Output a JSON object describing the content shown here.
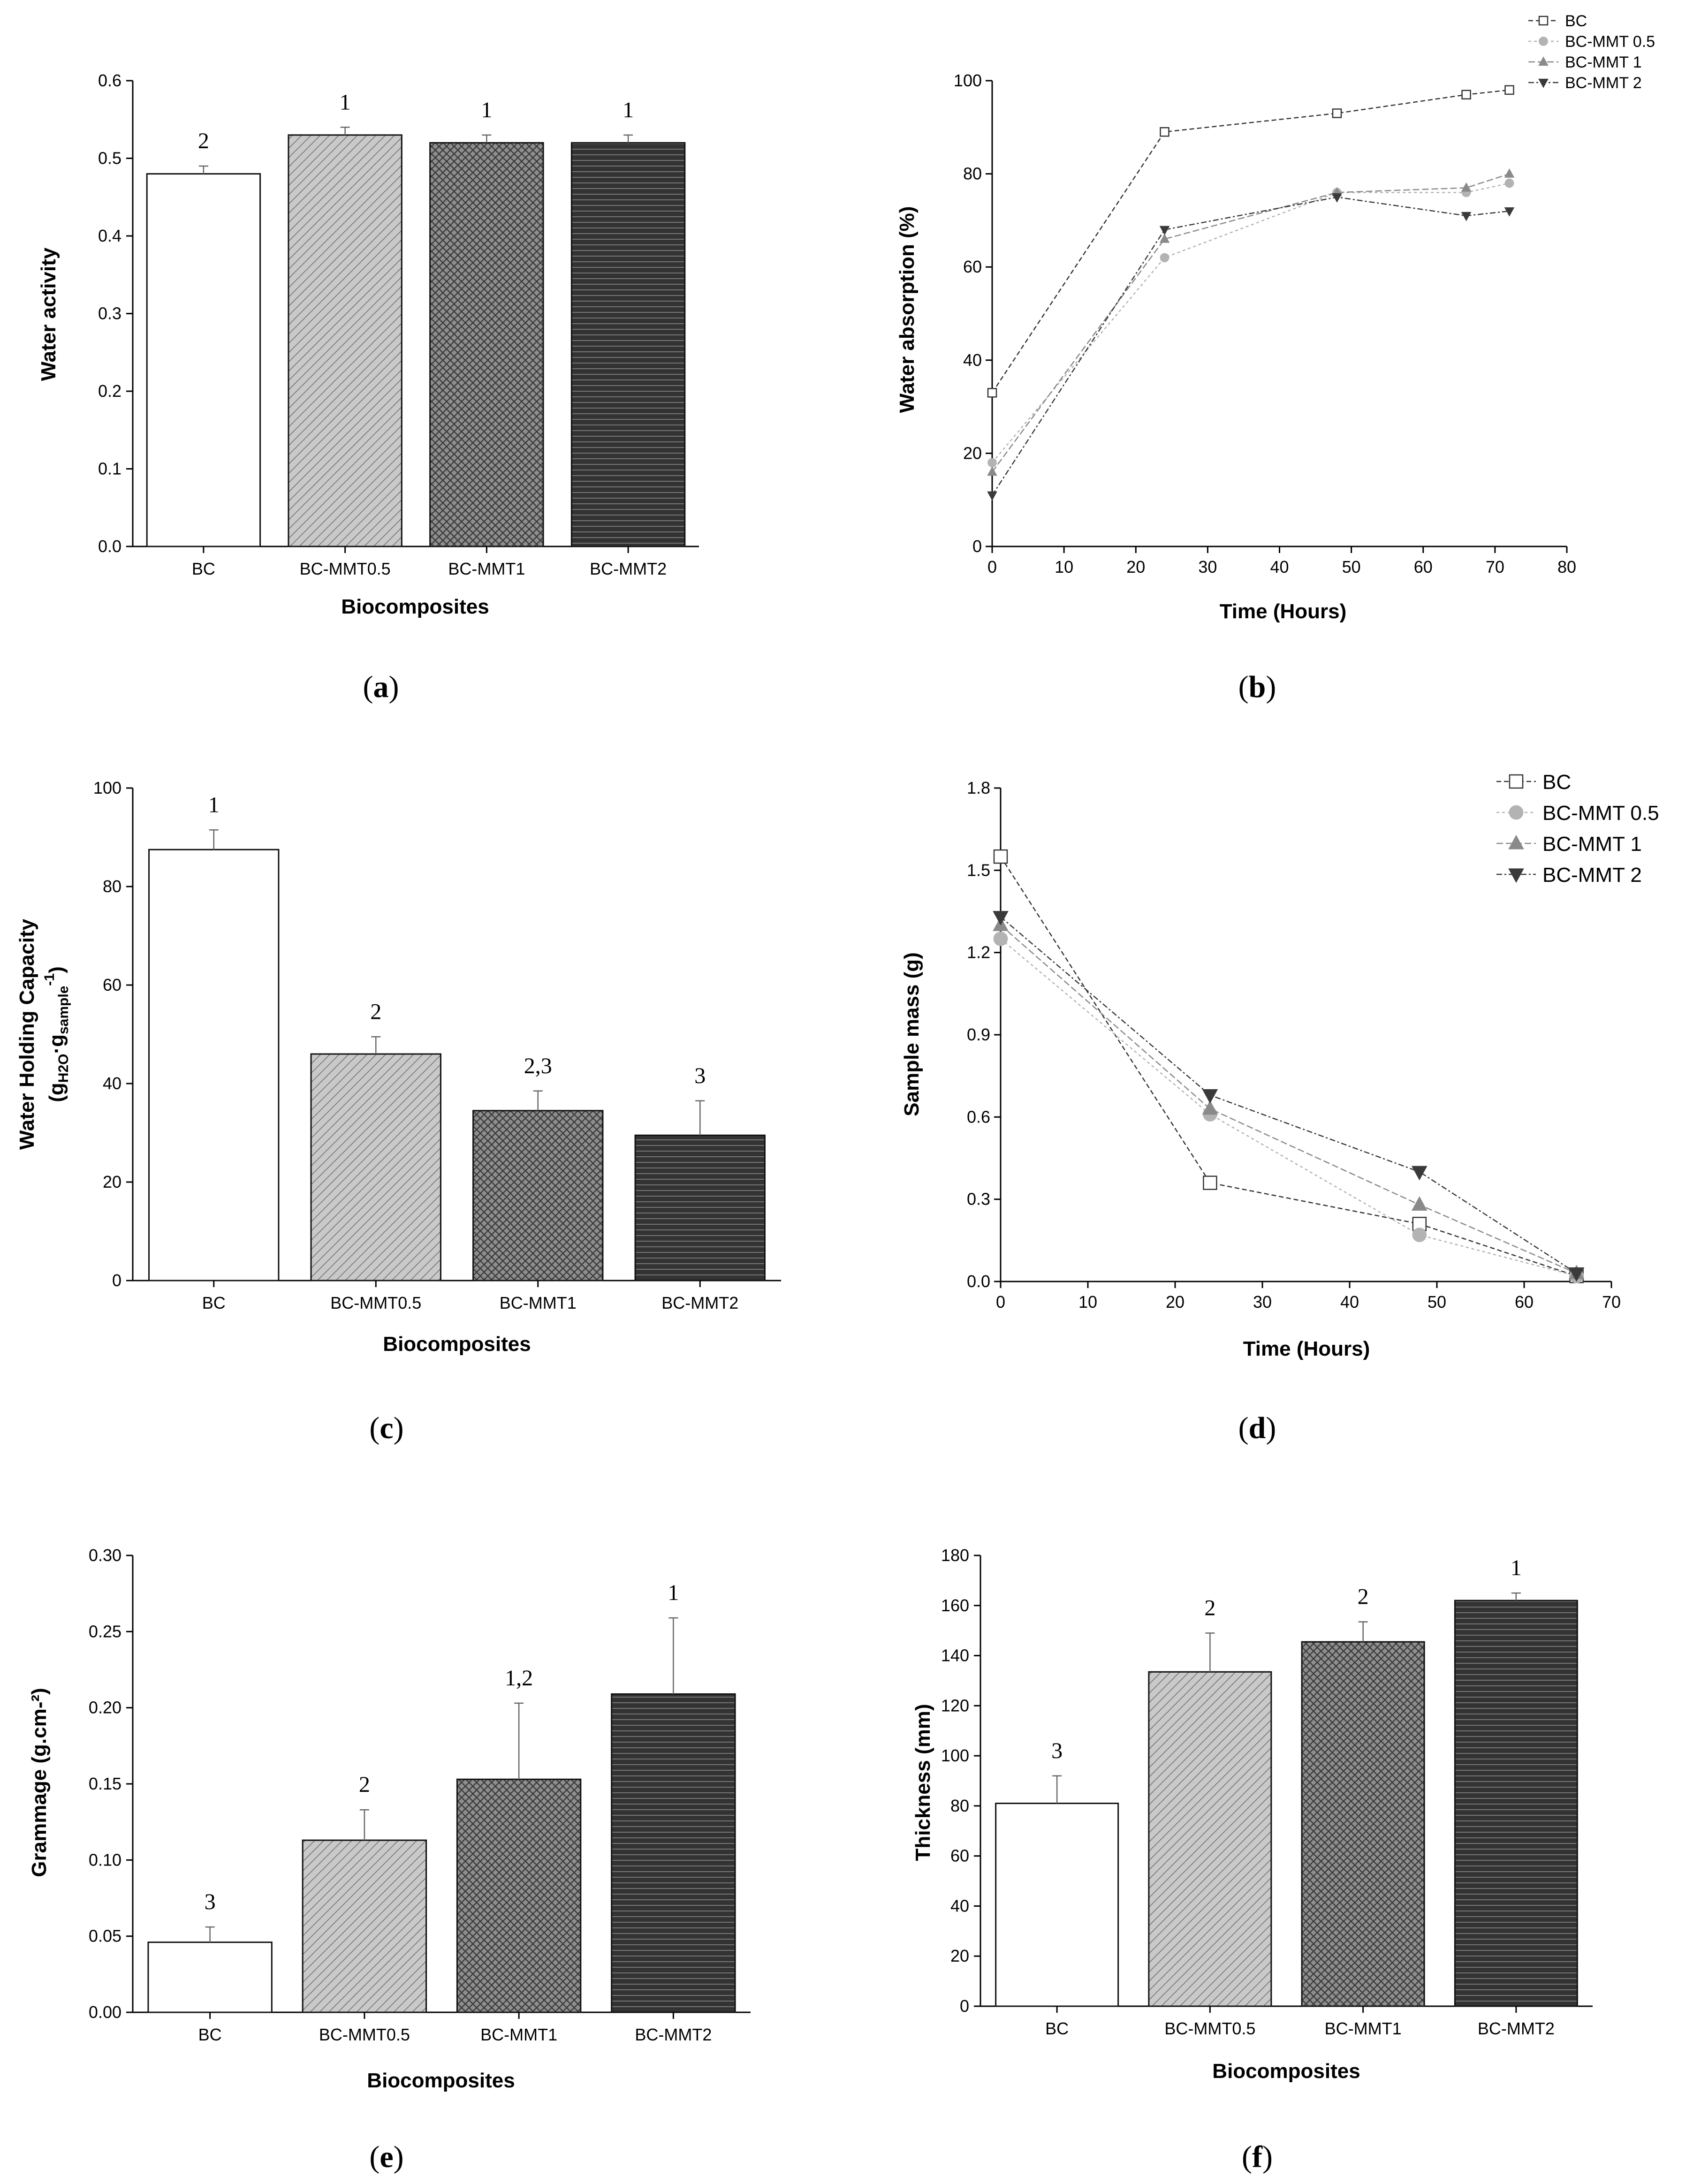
{
  "colors": {
    "bar_BC": "#ffffff",
    "bar_MMT05": "#c9c9c9",
    "bar_MMT1": "#8e8e8e",
    "bar_MMT2": "#333333",
    "axis": "#000000",
    "line_BC": "#333333",
    "line_MMT05": "#b3b3b3",
    "line_MMT1": "#8a8a8a",
    "line_MMT2": "#3a3a3a"
  },
  "chart_data": [
    {
      "type": "bar",
      "panel": "a",
      "panel_label": "a",
      "title": "",
      "xlabel": "Biocomposites",
      "ylabel": "Water activity",
      "ylim": [
        0.0,
        0.6
      ],
      "yticks": [
        "0.0",
        "0.1",
        "0.2",
        "0.3",
        "0.4",
        "0.5",
        "0.6"
      ],
      "categories": [
        "BC",
        "BC-MMT0.5",
        "BC-MMT1",
        "BC-MMT2"
      ],
      "values": [
        0.48,
        0.53,
        0.52,
        0.52
      ],
      "errors": [
        0.01,
        0.01,
        0.01,
        0.01
      ],
      "significance": [
        "2",
        "1",
        "1",
        "1"
      ]
    },
    {
      "type": "line",
      "panel": "b",
      "panel_label": "b",
      "title": "",
      "xlabel": "Time (Hours)",
      "ylabel": "Water absorption (%)",
      "xlim": [
        0,
        80
      ],
      "ylim": [
        0,
        100
      ],
      "xticks": [
        "0",
        "10",
        "20",
        "30",
        "40",
        "50",
        "60",
        "70",
        "80"
      ],
      "yticks": [
        "0",
        "20",
        "40",
        "60",
        "80",
        "100"
      ],
      "legend_position": "top-right",
      "series": [
        {
          "name": "BC",
          "marker": "square-open",
          "x": [
            0,
            24,
            48,
            66,
            72
          ],
          "y": [
            33,
            89,
            93,
            97,
            98
          ]
        },
        {
          "name": "BC-MMT 0.5",
          "marker": "circle",
          "x": [
            0,
            24,
            48,
            66,
            72
          ],
          "y": [
            18,
            62,
            76,
            76,
            78
          ]
        },
        {
          "name": "BC-MMT 1",
          "marker": "triangle-up",
          "x": [
            0,
            24,
            48,
            66,
            72
          ],
          "y": [
            16,
            66,
            76,
            77,
            80
          ]
        },
        {
          "name": "BC-MMT 2",
          "marker": "triangle-down",
          "x": [
            0,
            24,
            48,
            66,
            72
          ],
          "y": [
            11,
            68,
            75,
            71,
            72
          ]
        }
      ]
    },
    {
      "type": "bar",
      "panel": "c",
      "panel_label": "c",
      "title": "",
      "xlabel": "Biocomposites",
      "ylabel_line1": "Water Holding Capacity",
      "ylabel_line2": "(g",
      "ylabel_sub1": "H2O",
      "ylabel_mid": "·g",
      "ylabel_sub2": "sample",
      "ylabel_sup": "-1",
      "ylabel_end": ")",
      "ylim": [
        0,
        100
      ],
      "yticks": [
        "0",
        "20",
        "40",
        "60",
        "80",
        "100"
      ],
      "categories": [
        "BC",
        "BC-MMT0.5",
        "BC-MMT1",
        "BC-MMT2"
      ],
      "values": [
        87.5,
        46,
        34.5,
        29.5
      ],
      "errors": [
        4,
        3.5,
        4,
        7
      ],
      "significance": [
        "1",
        "2",
        "2,3",
        "3"
      ]
    },
    {
      "type": "line",
      "panel": "d",
      "panel_label": "d",
      "title": "",
      "xlabel": "Time (Hours)",
      "ylabel": "Sample mass (g)",
      "xlim": [
        0,
        70
      ],
      "ylim": [
        0.0,
        1.8
      ],
      "xticks": [
        "0",
        "10",
        "20",
        "30",
        "40",
        "50",
        "60",
        "70"
      ],
      "yticks": [
        "0.0",
        "0.3",
        "0.6",
        "0.9",
        "1.2",
        "1.5",
        "1.8"
      ],
      "legend_position": "top-right",
      "series": [
        {
          "name": "BC",
          "marker": "square-open",
          "x": [
            0,
            24,
            48,
            66
          ],
          "y": [
            1.55,
            0.36,
            0.21,
            0.02
          ]
        },
        {
          "name": "BC-MMT 0.5",
          "marker": "circle",
          "x": [
            0,
            24,
            48,
            66
          ],
          "y": [
            1.25,
            0.61,
            0.17,
            0.02
          ]
        },
        {
          "name": "BC-MMT 1",
          "marker": "triangle-up",
          "x": [
            0,
            24,
            48,
            66
          ],
          "y": [
            1.3,
            0.63,
            0.28,
            0.03
          ]
        },
        {
          "name": "BC-MMT 2",
          "marker": "triangle-down",
          "x": [
            0,
            24,
            48,
            66
          ],
          "y": [
            1.33,
            0.68,
            0.4,
            0.03
          ]
        }
      ]
    },
    {
      "type": "bar",
      "panel": "e",
      "panel_label": "e",
      "title": "",
      "xlabel": "Biocomposites",
      "ylabel": "Grammage (g.cm-²)",
      "ylim": [
        0.0,
        0.3
      ],
      "yticks": [
        "0.00",
        "0.05",
        "0.10",
        "0.15",
        "0.20",
        "0.25",
        "0.30"
      ],
      "categories": [
        "BC",
        "BC-MMT0.5",
        "BC-MMT1",
        "BC-MMT2"
      ],
      "values": [
        0.046,
        0.113,
        0.153,
        0.209
      ],
      "errors": [
        0.01,
        0.02,
        0.05,
        0.05
      ],
      "significance": [
        "3",
        "2",
        "1,2",
        "1"
      ]
    },
    {
      "type": "bar",
      "panel": "f",
      "panel_label": "f",
      "title": "",
      "xlabel": "Biocomposites",
      "ylabel": "Thickness (mm)",
      "ylim": [
        0,
        180
      ],
      "yticks": [
        "0",
        "20",
        "40",
        "60",
        "80",
        "100",
        "120",
        "140",
        "160",
        "180"
      ],
      "categories": [
        "BC",
        "BC-MMT0.5",
        "BC-MMT1",
        "BC-MMT2"
      ],
      "values": [
        81,
        133.5,
        145.5,
        162
      ],
      "errors": [
        11,
        15.5,
        8,
        3
      ],
      "significance": [
        "3",
        "2",
        "2",
        "1"
      ]
    }
  ]
}
